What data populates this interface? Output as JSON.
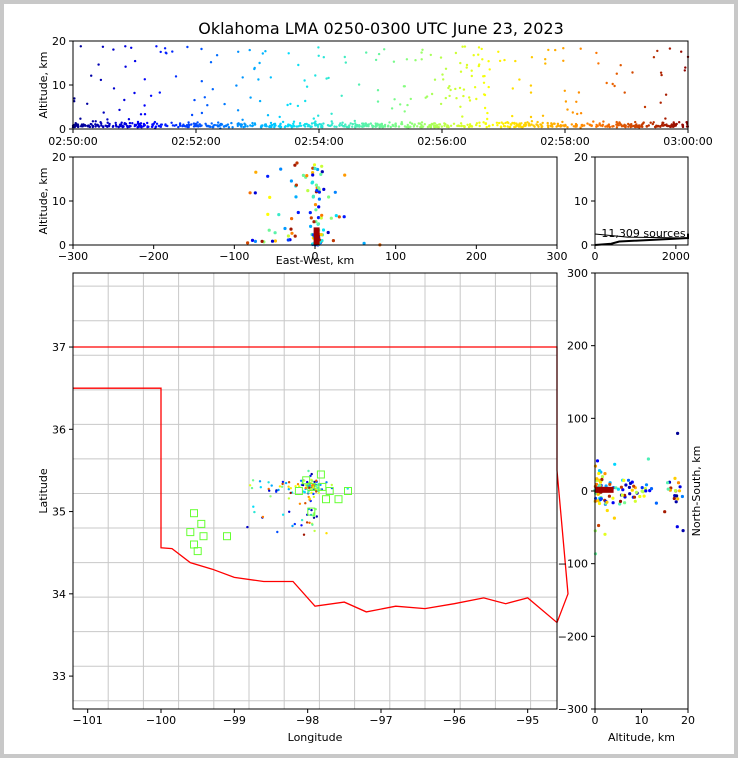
{
  "chart_data": {
    "type": "scatter",
    "title": "Oklahoma LMA 0250-0300 UTC June 23, 2023",
    "panels": {
      "time_altitude": {
        "ylabel": "Altitude, km",
        "ylim": [
          0,
          20
        ],
        "yticks": [
          "0",
          "10",
          "20"
        ],
        "xticks": [
          "02:50:00",
          "02:52:00",
          "02:54:00",
          "02:56:00",
          "02:58:00",
          "03:00:00"
        ],
        "xlim_minutes": [
          0,
          10
        ]
      },
      "ew_altitude": {
        "xlabel": "East-West, km",
        "ylabel": "Altitude, km",
        "xlim": [
          -300,
          300
        ],
        "ylim": [
          0,
          20
        ],
        "xticks": [
          "−300",
          "−200",
          "−100",
          "0",
          "100",
          "200",
          "300"
        ],
        "yticks": [
          "0",
          "10",
          "20"
        ]
      },
      "histogram": {
        "annotation": "11,309 sources",
        "xlim": [
          0,
          2300
        ],
        "ylim": [
          0,
          20
        ],
        "xticks": [
          "0",
          "2000"
        ],
        "yticks": [
          "0",
          "10",
          "20"
        ]
      },
      "map": {
        "xlabel": "Longitude",
        "ylabel": "Latitude",
        "xlim": [
          -101.2,
          -94.6
        ],
        "ylim": [
          32.6,
          37.9
        ],
        "xticks": [
          "−101",
          "−100",
          "−99",
          "−98",
          "−97",
          "−96",
          "−95"
        ],
        "yticks": [
          "33",
          "34",
          "35",
          "36",
          "37"
        ]
      },
      "alt_ns": {
        "xlabel": "Altitude, km",
        "ylabel": "North-South, km",
        "xlim": [
          0,
          20
        ],
        "ylim": [
          -300,
          300
        ],
        "xticks": [
          "0",
          "10",
          "20"
        ],
        "yticks": [
          "−300",
          "−200",
          "−100",
          "0",
          "100",
          "200",
          "300"
        ]
      }
    },
    "stations": [
      [
        -99.6,
        34.75
      ],
      [
        -99.55,
        34.98
      ],
      [
        -99.45,
        34.85
      ],
      [
        -99.42,
        34.7
      ],
      [
        -99.55,
        34.6
      ],
      [
        -99.5,
        34.52
      ],
      [
        -99.1,
        34.7
      ],
      [
        -98.12,
        35.25
      ],
      [
        -98.02,
        35.38
      ],
      [
        -97.95,
        35.3
      ],
      [
        -97.82,
        35.45
      ],
      [
        -97.8,
        35.3
      ],
      [
        -97.75,
        35.15
      ],
      [
        -97.7,
        35.25
      ],
      [
        -97.58,
        35.15
      ],
      [
        -97.45,
        35.25
      ],
      [
        -97.95,
        35.0
      ]
    ],
    "colors": {
      "state_border": "#ff0000",
      "county_lines": "#c8c8c8",
      "stations": "#66ff33",
      "histogram": "#000000"
    }
  }
}
